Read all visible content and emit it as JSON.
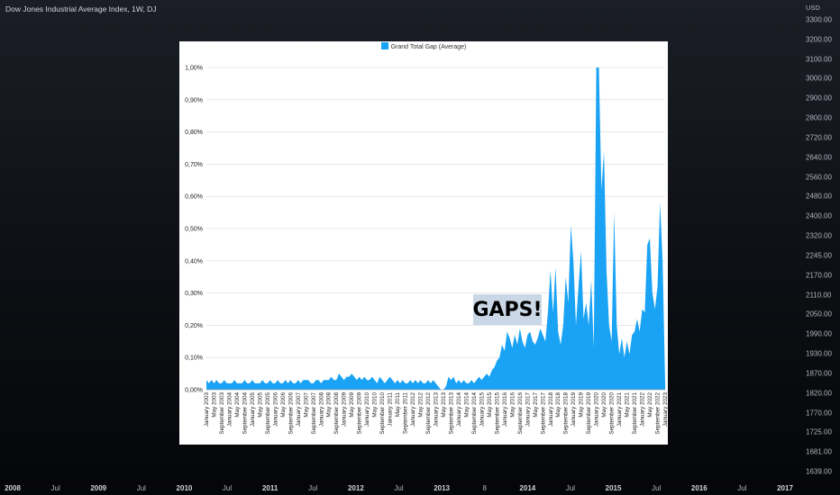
{
  "header": {
    "title": "Dow Jones Industrial Average Index, 1W, DJ"
  },
  "price_axis": {
    "currency": "USD",
    "labels": [
      "3300.00",
      "3200.00",
      "3100.00",
      "3000.00",
      "2900.00",
      "2800.00",
      "2720.00",
      "2640.00",
      "2560.00",
      "2480.00",
      "2400.00",
      "2320.00",
      "2245.00",
      "2170.00",
      "2110.00",
      "2050.00",
      "1990.00",
      "1930.00",
      "1870.00",
      "1820.00",
      "1770.00",
      "1725.00",
      "1681.00",
      "1639.00"
    ]
  },
  "time_axis": {
    "labels": [
      {
        "text": "2008",
        "year": true
      },
      {
        "text": "Jul",
        "year": false
      },
      {
        "text": "2009",
        "year": true
      },
      {
        "text": "Jul",
        "year": false
      },
      {
        "text": "2010",
        "year": true
      },
      {
        "text": "Jul",
        "year": false
      },
      {
        "text": "2011",
        "year": true
      },
      {
        "text": "Jul",
        "year": false
      },
      {
        "text": "2012",
        "year": true
      },
      {
        "text": "Jul",
        "year": false
      },
      {
        "text": "2013",
        "year": true
      },
      {
        "text": "8",
        "year": false
      },
      {
        "text": "2014",
        "year": true
      },
      {
        "text": "Jul",
        "year": false
      },
      {
        "text": "2015",
        "year": true
      },
      {
        "text": "Jul",
        "year": false
      },
      {
        "text": "2016",
        "year": true
      },
      {
        "text": "Jul",
        "year": false
      },
      {
        "text": "2017",
        "year": true
      }
    ]
  },
  "annotation": {
    "text": "GAPS!"
  },
  "chart_data": {
    "type": "area",
    "legend": "Grand Total Gap (Average)",
    "legend_position": "top-center",
    "color": "#1aa3f5",
    "ylim": [
      0,
      1.0
    ],
    "y_ticks": [
      "0,00%",
      "0,10%",
      "0,20%",
      "0,30%",
      "0,40%",
      "0,50%",
      "0,60%",
      "0,70%",
      "0,80%",
      "0,90%",
      "1,00%"
    ],
    "grid": true,
    "x_tick_labels": [
      "January 2003",
      "May 2003",
      "September 2003",
      "January 2004",
      "May 2004",
      "September 2004",
      "January 2005",
      "May 2005",
      "September 2005",
      "January 2006",
      "May 2006",
      "September 2006",
      "January 2007",
      "May 2007",
      "September 2007",
      "January 2008",
      "May 2008",
      "September 2008",
      "January 2009",
      "May 2009",
      "September 2009",
      "January 2010",
      "May 2010",
      "September 2010",
      "January 2011",
      "May 2011",
      "September 2011",
      "January 2012",
      "May 2012",
      "September 2012",
      "January 2013",
      "May 2013",
      "September 2013",
      "January 2014",
      "May 2014",
      "September 2014",
      "January 2015",
      "May 2015",
      "September 2015",
      "January 2016",
      "May 2016",
      "September 2016",
      "January 2017",
      "May 2017",
      "September 2017",
      "January 2018",
      "May 2018",
      "September 2018",
      "January 2019",
      "May 2019",
      "September 2019",
      "January 2020",
      "May 2020",
      "September 2020",
      "January 2021",
      "May 2021",
      "September 2021",
      "January 2022",
      "May 2022",
      "September 2022",
      "January 2023"
    ],
    "values": [
      0.03,
      0.02,
      0.03,
      0.02,
      0.03,
      0.02,
      0.02,
      0.03,
      0.02,
      0.02,
      0.02,
      0.03,
      0.02,
      0.02,
      0.02,
      0.03,
      0.02,
      0.02,
      0.03,
      0.02,
      0.02,
      0.02,
      0.03,
      0.02,
      0.02,
      0.03,
      0.02,
      0.02,
      0.03,
      0.02,
      0.02,
      0.03,
      0.02,
      0.03,
      0.02,
      0.02,
      0.03,
      0.02,
      0.03,
      0.03,
      0.03,
      0.02,
      0.02,
      0.03,
      0.03,
      0.02,
      0.03,
      0.03,
      0.03,
      0.04,
      0.03,
      0.03,
      0.05,
      0.04,
      0.03,
      0.04,
      0.04,
      0.05,
      0.04,
      0.03,
      0.04,
      0.03,
      0.04,
      0.03,
      0.03,
      0.04,
      0.03,
      0.02,
      0.04,
      0.03,
      0.02,
      0.03,
      0.04,
      0.03,
      0.02,
      0.03,
      0.02,
      0.03,
      0.02,
      0.02,
      0.03,
      0.02,
      0.03,
      0.02,
      0.03,
      0.02,
      0.02,
      0.03,
      0.02,
      0.03,
      0.02,
      0.01,
      0.0,
      0.0,
      0.01,
      0.04,
      0.03,
      0.04,
      0.02,
      0.03,
      0.02,
      0.03,
      0.02,
      0.02,
      0.03,
      0.02,
      0.03,
      0.04,
      0.03,
      0.04,
      0.05,
      0.04,
      0.06,
      0.07,
      0.09,
      0.1,
      0.14,
      0.12,
      0.18,
      0.16,
      0.13,
      0.17,
      0.14,
      0.19,
      0.15,
      0.13,
      0.17,
      0.18,
      0.15,
      0.14,
      0.16,
      0.19,
      0.17,
      0.15,
      0.24,
      0.37,
      0.24,
      0.38,
      0.18,
      0.14,
      0.2,
      0.35,
      0.27,
      0.51,
      0.4,
      0.2,
      0.32,
      0.43,
      0.22,
      0.27,
      0.2,
      0.34,
      0.13,
      1.0,
      1.0,
      0.62,
      0.74,
      0.37,
      0.2,
      0.15,
      0.55,
      0.2,
      0.11,
      0.16,
      0.1,
      0.15,
      0.11,
      0.17,
      0.18,
      0.22,
      0.18,
      0.25,
      0.24,
      0.45,
      0.47,
      0.3,
      0.25,
      0.32,
      0.58,
      0.4,
      0.02
    ]
  }
}
